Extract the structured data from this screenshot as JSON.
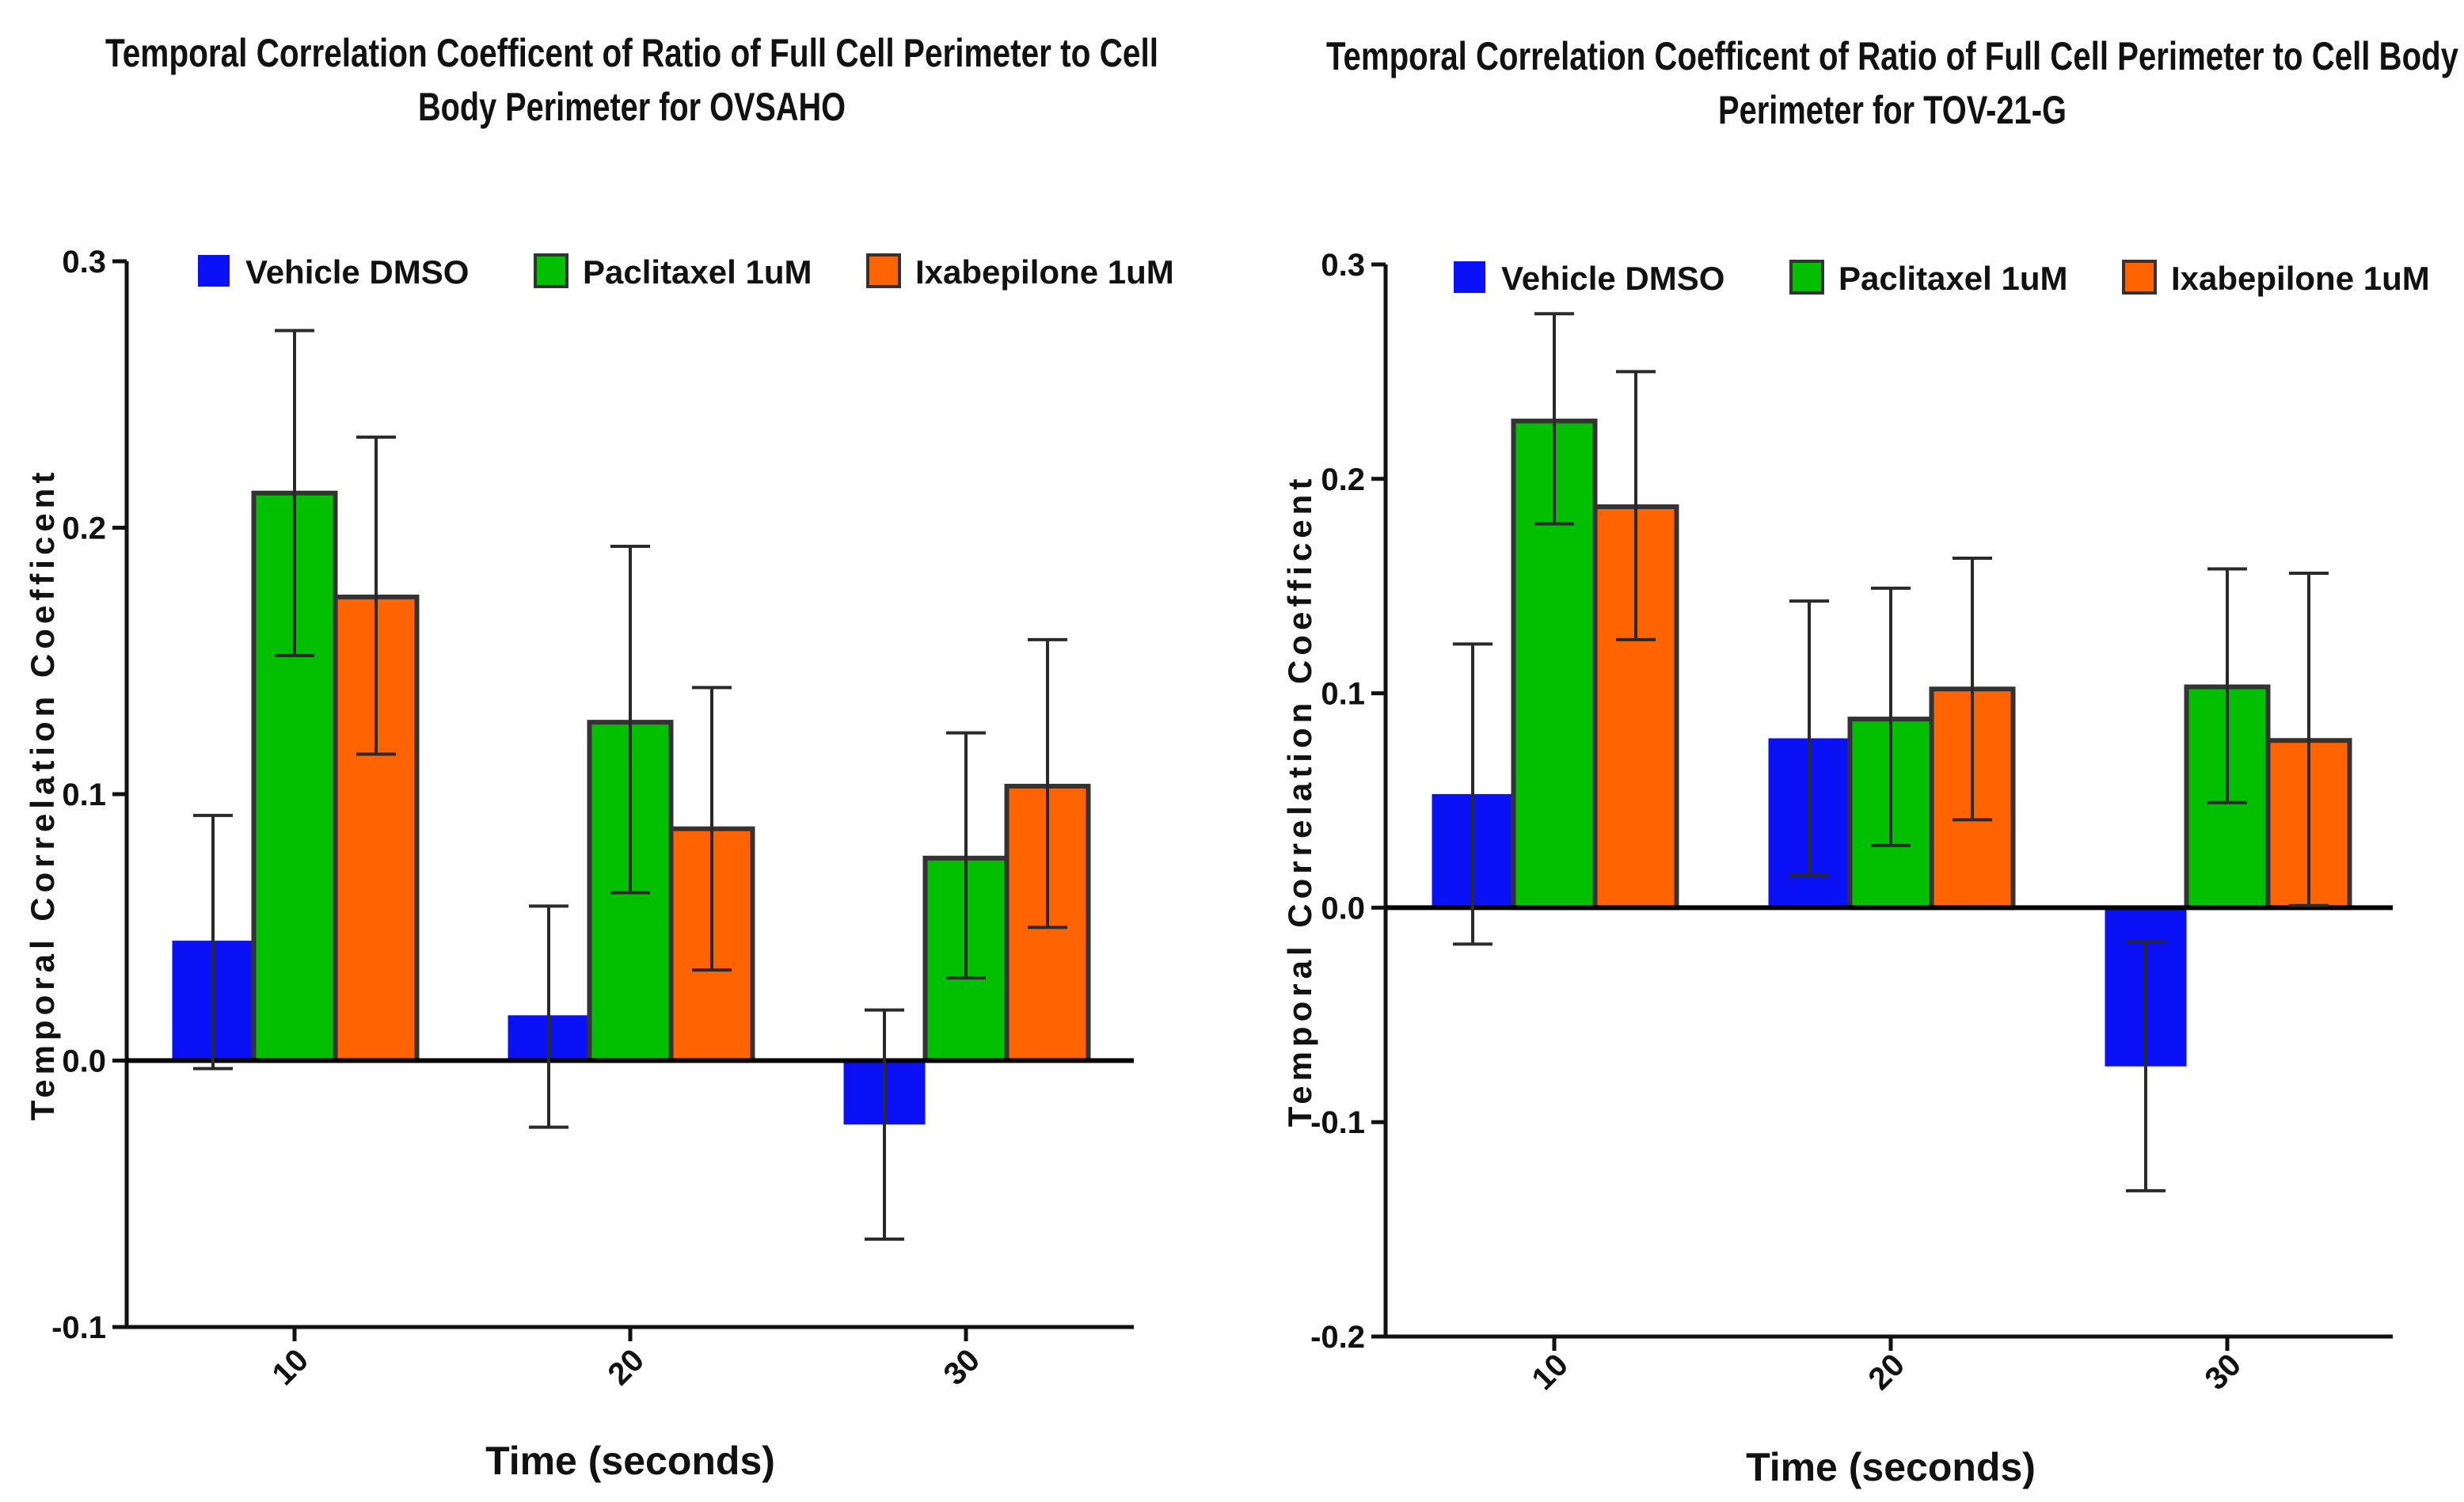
{
  "chart_data": [
    {
      "type": "bar",
      "title_lines": [
        "Temporal Correlation Coefficent of Ratio of Full Cell Perimeter to Cell",
        "Body Perimeter for OVSAHO"
      ],
      "xlabel": "Time (seconds)",
      "ylabel": "Temporal Correlation Coefficent",
      "categories": [
        "10",
        "20",
        "30"
      ],
      "ylim": [
        -0.1,
        0.3
      ],
      "yticks": [
        -0.1,
        0.0,
        0.1,
        0.2,
        0.3
      ],
      "ytick_labels": [
        "-0.1",
        "0.0",
        "0.1",
        "0.2",
        "0.3"
      ],
      "legend_position": "top",
      "series": [
        {
          "name": "Vehicle DMSO",
          "color": "#0a12f5",
          "outlined": false,
          "values": [
            0.045,
            0.017,
            -0.024
          ],
          "err_low": [
            -0.003,
            -0.025,
            -0.067
          ],
          "err_high": [
            0.092,
            0.058,
            0.019
          ]
        },
        {
          "name": "Paclitaxel 1uM",
          "color": "#00c000",
          "outlined": true,
          "values": [
            0.213,
            0.127,
            0.076
          ],
          "err_low": [
            0.152,
            0.063,
            0.031
          ],
          "err_high": [
            0.274,
            0.193,
            0.123
          ]
        },
        {
          "name": "Ixabepilone 1uM",
          "color": "#ff6400",
          "outlined": true,
          "values": [
            0.174,
            0.087,
            0.103
          ],
          "err_low": [
            0.115,
            0.034,
            0.05
          ],
          "err_high": [
            0.234,
            0.14,
            0.158
          ]
        }
      ]
    },
    {
      "type": "bar",
      "title_lines": [
        "Temporal Correlation Coefficent of Ratio of Full Cell Perimeter to Cell Body",
        "Perimeter for TOV-21-G"
      ],
      "xlabel": "Time (seconds)",
      "ylabel": "Temporal Correlation Coefficent",
      "categories": [
        "10",
        "20",
        "30"
      ],
      "ylim": [
        -0.2,
        0.3
      ],
      "yticks": [
        -0.2,
        -0.1,
        0.0,
        0.1,
        0.2,
        0.3
      ],
      "ytick_labels": [
        "-0.2",
        "-0.1",
        "0.0",
        "0.1",
        "0.2",
        "0.3"
      ],
      "legend_position": "top",
      "series": [
        {
          "name": "Vehicle DMSO",
          "color": "#0a12f5",
          "outlined": false,
          "values": [
            0.053,
            0.079,
            -0.074
          ],
          "err_low": [
            -0.017,
            0.015,
            -0.132
          ],
          "err_high": [
            0.123,
            0.143,
            -0.016
          ]
        },
        {
          "name": "Paclitaxel 1uM",
          "color": "#00c000",
          "outlined": true,
          "values": [
            0.227,
            0.088,
            0.103
          ],
          "err_low": [
            0.179,
            0.029,
            0.049
          ],
          "err_high": [
            0.277,
            0.149,
            0.158
          ]
        },
        {
          "name": "Ixabepilone 1uM",
          "color": "#ff6400",
          "outlined": true,
          "values": [
            0.187,
            0.102,
            0.078
          ],
          "err_low": [
            0.125,
            0.041,
            0.001
          ],
          "err_high": [
            0.25,
            0.163,
            0.156
          ]
        }
      ]
    }
  ]
}
